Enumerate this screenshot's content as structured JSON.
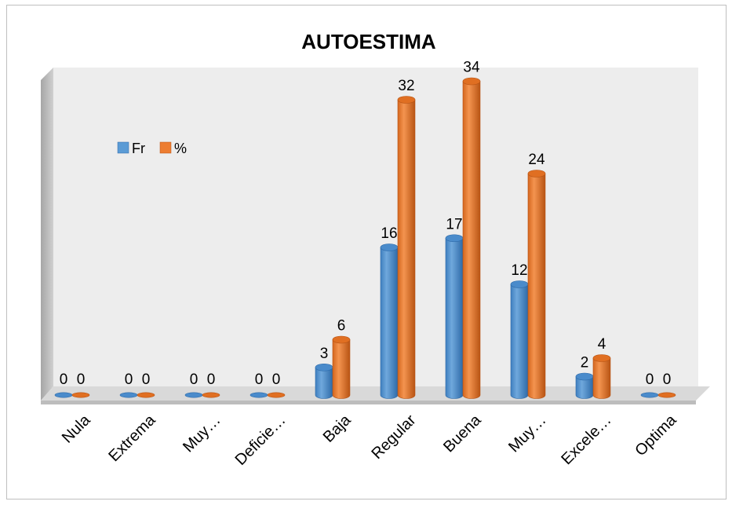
{
  "chart_data": {
    "type": "bar",
    "title": "AUTOESTIMA",
    "xlabel": "",
    "ylabel": "",
    "categories": [
      "Nula",
      "Extrema",
      "Muy…",
      "Deficie…",
      "Baja",
      "Regular",
      "Buena",
      "Muy…",
      "Excele…",
      "Optima"
    ],
    "series": [
      {
        "name": "Fr",
        "values": [
          0,
          0,
          0,
          0,
          3,
          16,
          17,
          12,
          2,
          0
        ],
        "color": "#5b9bd5"
      },
      {
        "name": "%",
        "values": [
          0,
          0,
          0,
          0,
          6,
          32,
          34,
          24,
          4,
          0
        ],
        "color": "#ed7d31"
      }
    ],
    "ylim": [
      0,
      36
    ],
    "grid": false,
    "legend": "top-left",
    "style": "3d-cylinder"
  }
}
